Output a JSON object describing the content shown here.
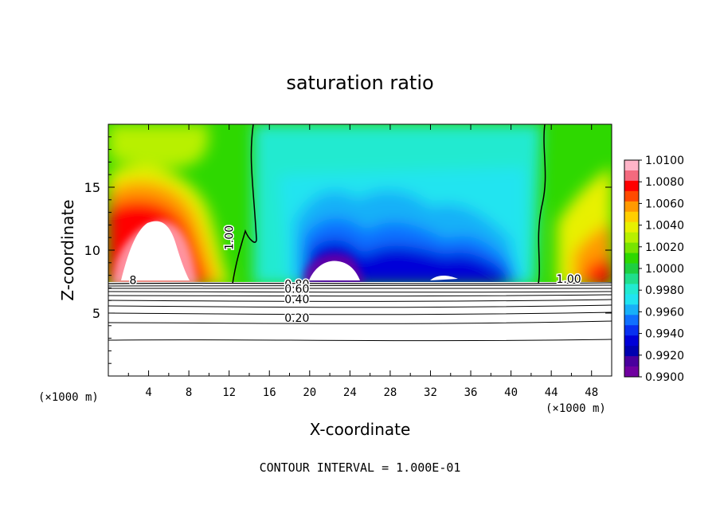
{
  "chart_data": {
    "type": "heatmap",
    "title": "saturation ratio",
    "xlabel": "X-coordinate",
    "ylabel": "Z-coordinate",
    "x_unit": "(×1000 m)",
    "x_unit_right": "(×1000 m)",
    "footer": "CONTOUR INTERVAL = 1.000E-01",
    "xlim": [
      0,
      50
    ],
    "ylim": [
      0,
      20
    ],
    "x_ticks": [
      4,
      8,
      12,
      16,
      20,
      24,
      28,
      32,
      36,
      40,
      44,
      48
    ],
    "y_ticks": [
      5,
      10,
      15
    ],
    "colorbar": {
      "min": 0.99,
      "max": 1.01,
      "step": 0.001,
      "labels": [
        "1.0100",
        "1.0080",
        "1.0060",
        "1.0040",
        "1.0020",
        "1.0000",
        "0.9980",
        "0.9960",
        "0.9940",
        "0.9920",
        "0.9900"
      ],
      "colors": [
        "#ffb4c8",
        "#f46a7e",
        "#ff0000",
        "#ff4a00",
        "#ff9a00",
        "#ffcf00",
        "#e8f000",
        "#b8f000",
        "#78e400",
        "#2ed800",
        "#1ecf40",
        "#20de8c",
        "#22ead0",
        "#20e4f0",
        "#18b0f8",
        "#1070ff",
        "#0830f0",
        "#0000d8",
        "#0000b0",
        "#4a009e",
        "#7000a0"
      ]
    },
    "field_description_points": [],
    "contour_labels": [
      {
        "text": "1.00",
        "x": 12.4,
        "z": 10.0,
        "rotate": -90
      },
      {
        "text": "1.00",
        "x": 44.5,
        "z": 7.4,
        "rotate": 0
      },
      {
        "text": "0.80",
        "x": 17.5,
        "z": 7.0,
        "rotate": 0
      },
      {
        "text": "0.60",
        "x": 17.5,
        "z": 6.6,
        "rotate": 0
      },
      {
        "text": "0.40",
        "x": 17.5,
        "z": 5.8,
        "rotate": 0
      },
      {
        "text": "0.20",
        "x": 17.5,
        "z": 4.3,
        "rotate": 0
      },
      {
        "text": "8",
        "x": 2.1,
        "z": 7.3,
        "rotate": 0
      }
    ]
  }
}
